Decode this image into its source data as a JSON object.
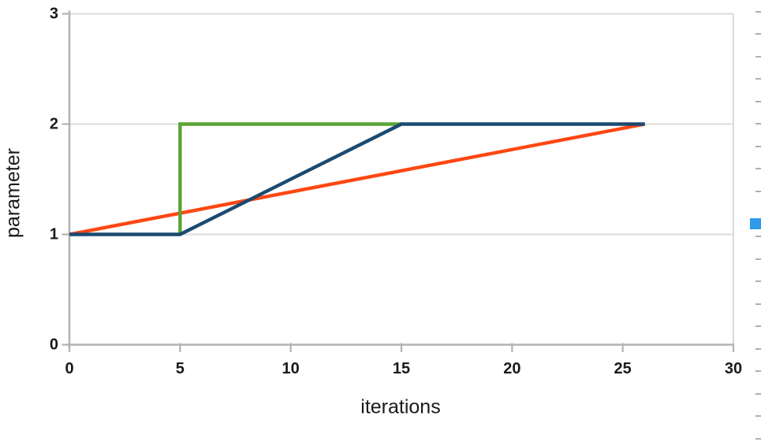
{
  "chart_data": {
    "type": "line",
    "title": "",
    "xlabel": "iterations",
    "ylabel": "parameter",
    "xlim": [
      0,
      30
    ],
    "ylim": [
      0,
      3
    ],
    "x_ticks": [
      0,
      5,
      10,
      15,
      20,
      25,
      30
    ],
    "y_ticks": [
      0,
      1,
      2,
      3
    ],
    "grid": "horizontal gridlines at y=1,2,3 plus right border",
    "legend": "none",
    "series": [
      {
        "name": "orange-line",
        "color": "#FF4713",
        "points": [
          [
            0,
            1
          ],
          [
            26,
            2
          ]
        ]
      },
      {
        "name": "green-line",
        "color": "#5AA335",
        "points": [
          [
            5,
            1
          ],
          [
            5,
            2
          ],
          [
            15,
            2
          ]
        ]
      },
      {
        "name": "blue-line",
        "color": "#1B4A70",
        "points": [
          [
            0,
            1
          ],
          [
            5,
            1
          ],
          [
            15,
            2
          ],
          [
            26,
            2
          ]
        ]
      }
    ],
    "axis_color": "#B3B3B3",
    "gridline_color": "#DBDBDB",
    "text_color": "#1A1A1A"
  },
  "ui": {
    "selection_handle_color": "#2D9BE9",
    "selection_dash_color": "#AFAFAF"
  }
}
